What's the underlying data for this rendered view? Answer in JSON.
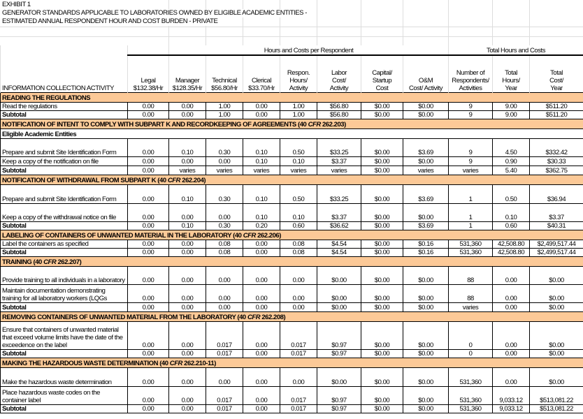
{
  "titles": [
    "EXHIBIT 1",
    "GENERATOR STANDARDS APPLICABLE TO LABORATORIES OWNED BY ELIGIBLE ACADEMIC ENTITIES -",
    "ESTIMATED ANNUAL RESPONDENT HOUR AND COST BURDEN - PRIVATE"
  ],
  "header": {
    "group1": "Hours and Costs per Respondent",
    "group2": "Total Hours and Costs",
    "columns": [
      "INFORMATION COLLECTION ACTIVITY",
      "Legal\n$132.38/Hr",
      "Manager\n$128.35/Hr",
      "Technical\n$56.80/Hr",
      "Clerical\n$33.70/Hr",
      "Respon.\nHours/\nActivity",
      "Labor\nCost/\nActivity",
      "Capital/\nStartup\nCost",
      "O&M\nCost/ Activity",
      "Number of\nRespondents/\nActivities",
      "Total\nHours/\nYear",
      "Total\nCost/\nYear"
    ]
  },
  "colors": {
    "section_bg": "#fcc997"
  },
  "sections": [
    {
      "pre": "READING THE REGULATIONS",
      "cfr": "",
      "post": "",
      "rows": [
        {
          "cells": [
            "Read the regulations",
            "0.00",
            "0.00",
            "1.00",
            "0.00",
            "1.00",
            "$56.80",
            "$0.00",
            "$0.00",
            "9",
            "9.00",
            "$511.20"
          ]
        },
        {
          "total": true,
          "cells": [
            "Subtotal",
            "0.00",
            "0.00",
            "1.00",
            "0.00",
            "1.00",
            "$56.80",
            "$0.00",
            "$0.00",
            "9",
            "9.00",
            "$511.20"
          ]
        }
      ]
    },
    {
      "pre": "NOTIFICATION OF INTENT TO COMPLY WITH SUBPART K AND RECORDKEEPING OF AGREEMENTS (40 ",
      "cfr": "CFR",
      "post": " 262.203)",
      "subheading": "Eligible Academic Entities",
      "rows": [
        {
          "cells": [
            "Prepare and submit Site Identification Form",
            "0.00",
            "0.10",
            "0.30",
            "0.10",
            "0.50",
            "$33.25",
            "$0.00",
            "$3.69",
            "9",
            "4.50",
            "$332.42"
          ]
        },
        {
          "cells": [
            "Keep a copy of the notification on file",
            "0.00",
            "0.00",
            "0.00",
            "0.10",
            "0.10",
            "$3.37",
            "$0.00",
            "$0.00",
            "9",
            "0.90",
            "$30.33"
          ]
        },
        {
          "total": true,
          "cells": [
            "Subtotal",
            "0.00",
            "varies",
            "varies",
            "varies",
            "varies",
            "varies",
            "$0.00",
            "varies",
            "varies",
            "5.40",
            "$362.75"
          ]
        }
      ]
    },
    {
      "pre": "NOTIFICATION OF WITHDRAWAL FROM SUBPART K (40 ",
      "cfr": "CFR",
      "post": " 262.204)",
      "rows": [
        {
          "cells": [
            "Prepare and submit Site Identification Form",
            "0.00",
            "0.10",
            "0.30",
            "0.10",
            "0.50",
            "$33.25",
            "$0.00",
            "$3.69",
            "1",
            "0.50",
            "$36.94"
          ]
        },
        {
          "cells": [
            "Keep a copy of the withdrawal notice on file",
            "0.00",
            "0.00",
            "0.00",
            "0.10",
            "0.10",
            "$3.37",
            "$0.00",
            "$0.00",
            "1",
            "0.10",
            "$3.37"
          ]
        },
        {
          "total": true,
          "cells": [
            "Subtotal",
            "0.00",
            "0.10",
            "0.30",
            "0.20",
            "0.60",
            "$36.62",
            "$0.00",
            "$3.69",
            "1",
            "0.60",
            "$40.31"
          ]
        }
      ]
    },
    {
      "pre": "LABELING OF CONTAINERS OF UNWANTED MATERIAL IN THE LABORATORY (40 ",
      "cfr": "CFR",
      "post": " 262.206)",
      "rows": [
        {
          "cells": [
            "Label the containers as specified",
            "0.00",
            "0.00",
            "0.08",
            "0.00",
            "0.08",
            "$4.54",
            "$0.00",
            "$0.16",
            "531,360",
            "42,508.80",
            "$2,499,517.44"
          ]
        },
        {
          "total": true,
          "cells": [
            "Subtotal",
            "0.00",
            "0.00",
            "0.08",
            "0.00",
            "0.08",
            "$4.54",
            "$0.00",
            "$0.16",
            "531,360",
            "42,508.80",
            "$2,499,517.44"
          ]
        }
      ]
    },
    {
      "pre": "TRAINING (40 ",
      "cfr": "CFR",
      "post": " 262.207)",
      "rows": [
        {
          "cells": [
            "Provide training to all individuals in a laboratory",
            "0.00",
            "0.00",
            "0.00",
            "0.00",
            "0.00",
            "$0.00",
            "$0.00",
            "$0.00",
            "88",
            "0.00",
            "$0.00"
          ]
        },
        {
          "cells": [
            "Maintain documentation demonstrating training for all laboratory workers (LQGs",
            "0.00",
            "0.00",
            "0.00",
            "0.00",
            "0.00",
            "$0.00",
            "$0.00",
            "$0.00",
            "88",
            "0.00",
            "$0.00"
          ]
        },
        {
          "total": true,
          "cells": [
            "Subtotal",
            "0.00",
            "0.00",
            "0.00",
            "0.00",
            "0.00",
            "$0.00",
            "$0.00",
            "$0.00",
            "varies",
            "0.00",
            "$0.00"
          ]
        }
      ]
    },
    {
      "pre": "REMOVING CONTAINERS OF UNWANTED MATERIAL FROM THE LABORATORY (40 ",
      "cfr": "CFR",
      "post": " 262.208)",
      "rows": [
        {
          "cells": [
            "Ensure that containers of unwanted material that exceed volume limits have the date of the exceedence on the label",
            "0.00",
            "0.00",
            "0.017",
            "0.00",
            "0.017",
            "$0.97",
            "$0.00",
            "$0.00",
            "0",
            "0.00",
            "$0.00"
          ]
        },
        {
          "total": true,
          "cells": [
            "Subtotal",
            "0.00",
            "0.00",
            "0.017",
            "0.00",
            "0.017",
            "$0.97",
            "$0.00",
            "$0.00",
            "0",
            "0.00",
            "$0.00"
          ]
        }
      ]
    },
    {
      "pre": "MAKING THE HAZARDOUS WASTE DETERMINATION (40 ",
      "cfr": "CFR",
      "post": " 262.210-11)",
      "rows": [
        {
          "cells": [
            "Make the hazardous waste determination",
            "0.00",
            "0.00",
            "0.00",
            "0.00",
            "0.00",
            "$0.00",
            "$0.00",
            "$0.00",
            "531,360",
            "0.00",
            "$0.00"
          ]
        },
        {
          "cells": [
            "Place hazardous waste codes on the container label",
            "0.00",
            "0.00",
            "0.017",
            "0.00",
            "0.017",
            "$0.97",
            "$0.00",
            "$0.00",
            "531,360",
            "9,033.12",
            "$513,081.22"
          ]
        },
        {
          "total": true,
          "cells": [
            "Subtotal",
            "0.00",
            "0.00",
            "0.017",
            "0.00",
            "0.017",
            "$0.97",
            "$0.00",
            "$0.00",
            "531,360",
            "9,033.12",
            "$513,081.22"
          ]
        }
      ]
    }
  ]
}
